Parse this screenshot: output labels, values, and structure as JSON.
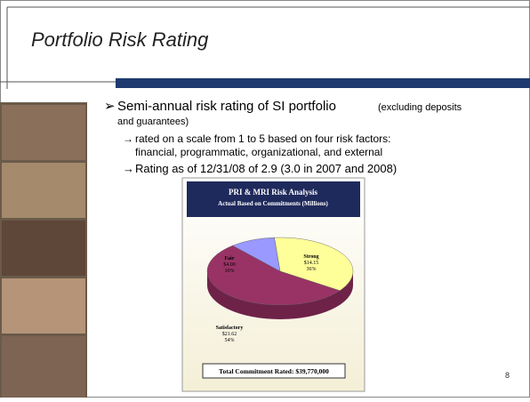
{
  "slide": {
    "title": "Portfolio Risk Rating",
    "bullet": "Semi-annual risk rating of SI portfolio",
    "bullet_note_1": "(excluding deposits",
    "bullet_note_2": "and guarantees)",
    "sub_1a": "rated on a scale from 1 to 5 based on four risk factors:",
    "sub_1b": "financial, programmatic, organizational, and external",
    "sub_2": "Rating as of 12/31/08 of 2.9 (3.0 in 2007 and 2008)",
    "page_number": "8"
  },
  "chart_data": {
    "type": "pie",
    "title": "PRI & MRI Risk Analysis",
    "subtitle": "Actual Based on Commitments (Millions)",
    "categories": [
      "Strong",
      "Satisfactory",
      "Fair"
    ],
    "amounts": [
      "$14.15",
      "$21.62",
      "$4.00"
    ],
    "values": [
      36,
      54,
      10
    ],
    "value_labels": [
      "36%",
      "54%",
      "10%"
    ],
    "colors": [
      "#ffff99",
      "#993366",
      "#9999ff"
    ],
    "footer": "Total Commitment Rated:  $39,770,000"
  }
}
